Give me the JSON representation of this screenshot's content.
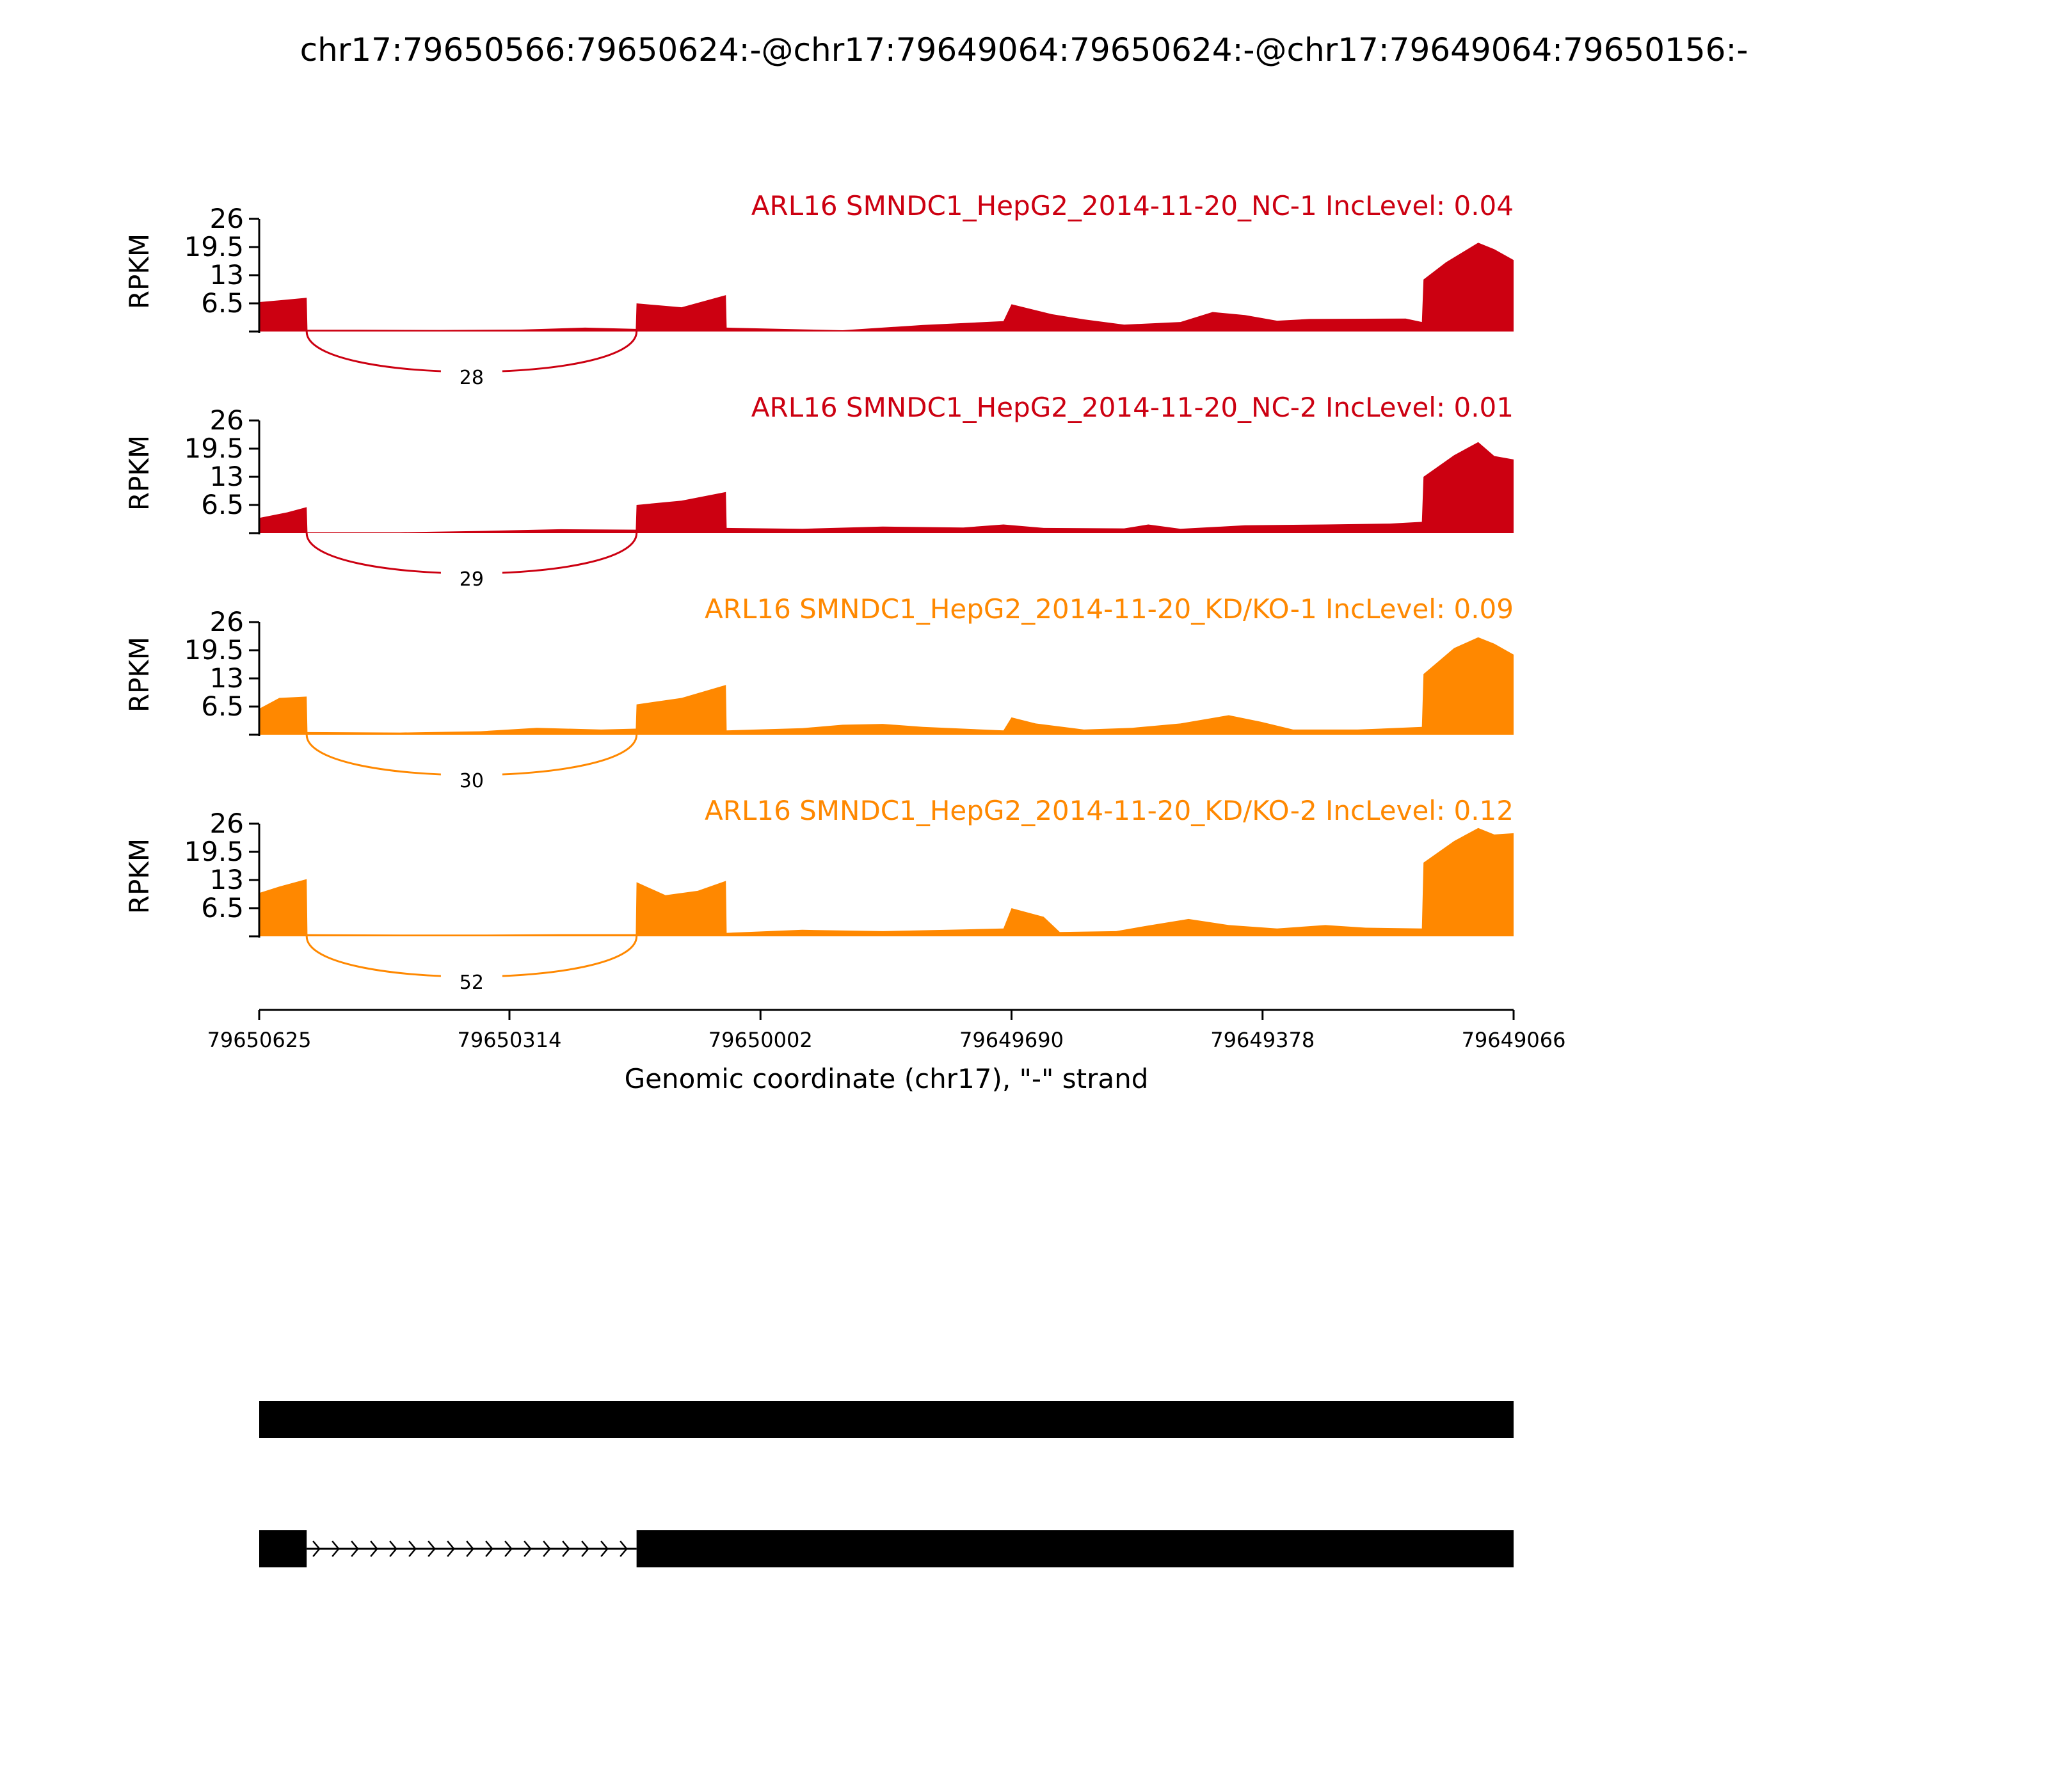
{
  "page_title": "chr17:79650566:79650624:-@chr17:79649064:79650624:-@chr17:79649064:79650156:-",
  "chart_data": {
    "type": "area",
    "title": "chr17:79650566:79650624:-@chr17:79649064:79650624:-@chr17:79649064:79650156:-",
    "ylabel": "RPKM",
    "xlabel": "Genomic coordinate (chr17), \"-\" strand",
    "xlim": [
      79650625,
      79649066
    ],
    "ylim": [
      0,
      26
    ],
    "yticks": [
      "6.5",
      "13",
      "19.5",
      "26"
    ],
    "xticks": [
      "79650625",
      "79650314",
      "79650002",
      "79649690",
      "79649378",
      "79649066"
    ],
    "tracks": [
      {
        "label": "ARL16 SMNDC1_HepG2_2014-11-20_NC-1 IncLevel: 0.04",
        "color": "#cc0011",
        "junction": {
          "from": 79650566,
          "to": 79650156,
          "count": "28"
        },
        "coverage": [
          [
            79650625,
            6.8
          ],
          [
            79650600,
            7.2
          ],
          [
            79650566,
            7.8
          ],
          [
            79650565,
            0.4
          ],
          [
            79650500,
            0.4
          ],
          [
            79650400,
            0.35
          ],
          [
            79650300,
            0.45
          ],
          [
            79650220,
            0.9
          ],
          [
            79650157,
            0.6
          ],
          [
            79650156,
            6.5
          ],
          [
            79650100,
            5.6
          ],
          [
            79650045,
            8.4
          ],
          [
            79650044,
            0.9
          ],
          [
            79649950,
            0.5
          ],
          [
            79649900,
            0.3
          ],
          [
            79649800,
            1.5
          ],
          [
            79649700,
            2.4
          ],
          [
            79649690,
            6.3
          ],
          [
            79649640,
            4.0
          ],
          [
            79649600,
            2.8
          ],
          [
            79649550,
            1.6
          ],
          [
            79649480,
            2.2
          ],
          [
            79649440,
            4.5
          ],
          [
            79649400,
            3.8
          ],
          [
            79649360,
            2.5
          ],
          [
            79649320,
            2.9
          ],
          [
            79649200,
            3.0
          ],
          [
            79649180,
            2.2
          ],
          [
            79649178,
            12.0
          ],
          [
            79649150,
            16.0
          ],
          [
            79649110,
            20.5
          ],
          [
            79649090,
            19.0
          ],
          [
            79649066,
            16.5
          ]
        ]
      },
      {
        "label": "ARL16 SMNDC1_HepG2_2014-11-20_NC-2 IncLevel: 0.01",
        "color": "#cc0011",
        "junction": {
          "from": 79650566,
          "to": 79650156,
          "count": "29"
        },
        "coverage": [
          [
            79650625,
            3.5
          ],
          [
            79650590,
            4.8
          ],
          [
            79650566,
            6.0
          ],
          [
            79650565,
            0.2
          ],
          [
            79650450,
            0.2
          ],
          [
            79650350,
            0.5
          ],
          [
            79650250,
            0.9
          ],
          [
            79650157,
            0.8
          ],
          [
            79650156,
            6.5
          ],
          [
            79650100,
            7.5
          ],
          [
            79650045,
            9.5
          ],
          [
            79650044,
            1.2
          ],
          [
            79649950,
            1.0
          ],
          [
            79649850,
            1.5
          ],
          [
            79649750,
            1.3
          ],
          [
            79649700,
            2.0
          ],
          [
            79649650,
            1.2
          ],
          [
            79649550,
            1.1
          ],
          [
            79649520,
            2.0
          ],
          [
            79649480,
            1.0
          ],
          [
            79649400,
            1.8
          ],
          [
            79649300,
            2.0
          ],
          [
            79649220,
            2.2
          ],
          [
            79649180,
            2.6
          ],
          [
            79649178,
            13.0
          ],
          [
            79649140,
            18.0
          ],
          [
            79649110,
            21.0
          ],
          [
            79649090,
            17.8
          ],
          [
            79649066,
            17.0
          ]
        ]
      },
      {
        "label": "ARL16 SMNDC1_HepG2_2014-11-20_KD/KO-1 IncLevel: 0.09",
        "color": "#ff8800",
        "junction": {
          "from": 79650566,
          "to": 79650156,
          "count": "30"
        },
        "coverage": [
          [
            79650625,
            6.0
          ],
          [
            79650600,
            8.5
          ],
          [
            79650566,
            8.8
          ],
          [
            79650565,
            0.6
          ],
          [
            79650450,
            0.5
          ],
          [
            79650350,
            0.8
          ],
          [
            79650280,
            1.6
          ],
          [
            79650200,
            1.2
          ],
          [
            79650157,
            1.4
          ],
          [
            79650156,
            7.0
          ],
          [
            79650100,
            8.5
          ],
          [
            79650045,
            11.5
          ],
          [
            79650044,
            1.0
          ],
          [
            79649950,
            1.5
          ],
          [
            79649900,
            2.3
          ],
          [
            79649850,
            2.5
          ],
          [
            79649800,
            1.8
          ],
          [
            79649700,
            1.0
          ],
          [
            79649690,
            4.0
          ],
          [
            79649660,
            2.6
          ],
          [
            79649600,
            1.2
          ],
          [
            79649540,
            1.6
          ],
          [
            79649480,
            2.6
          ],
          [
            79649420,
            4.5
          ],
          [
            79649380,
            3.0
          ],
          [
            79649340,
            1.2
          ],
          [
            79649260,
            1.2
          ],
          [
            79649180,
            1.8
          ],
          [
            79649178,
            14.0
          ],
          [
            79649140,
            20.0
          ],
          [
            79649110,
            22.5
          ],
          [
            79649090,
            21.0
          ],
          [
            79649066,
            18.5
          ]
        ]
      },
      {
        "label": "ARL16 SMNDC1_HepG2_2014-11-20_KD/KO-2 IncLevel: 0.12",
        "color": "#ff8800",
        "junction": {
          "from": 79650566,
          "to": 79650156,
          "count": "52"
        },
        "coverage": [
          [
            79650625,
            10.0
          ],
          [
            79650600,
            11.5
          ],
          [
            79650566,
            13.2
          ],
          [
            79650565,
            0.5
          ],
          [
            79650450,
            0.4
          ],
          [
            79650350,
            0.4
          ],
          [
            79650250,
            0.5
          ],
          [
            79650157,
            0.5
          ],
          [
            79650156,
            12.5
          ],
          [
            79650120,
            9.5
          ],
          [
            79650080,
            10.5
          ],
          [
            79650045,
            12.8
          ],
          [
            79650044,
            0.8
          ],
          [
            79649950,
            1.5
          ],
          [
            79649850,
            1.2
          ],
          [
            79649750,
            1.6
          ],
          [
            79649700,
            1.8
          ],
          [
            79649690,
            6.5
          ],
          [
            79649650,
            4.5
          ],
          [
            79649630,
            1.0
          ],
          [
            79649560,
            1.2
          ],
          [
            79649520,
            2.5
          ],
          [
            79649470,
            4.0
          ],
          [
            79649420,
            2.6
          ],
          [
            79649360,
            1.8
          ],
          [
            79649300,
            2.6
          ],
          [
            79649250,
            2.0
          ],
          [
            79649180,
            1.8
          ],
          [
            79649178,
            17.0
          ],
          [
            79649140,
            22.0
          ],
          [
            79649110,
            25.0
          ],
          [
            79649090,
            23.5
          ],
          [
            79649066,
            23.8
          ]
        ]
      }
    ],
    "isoforms": [
      {
        "exons": [
          [
            79650625,
            79649066
          ]
        ]
      },
      {
        "exons": [
          [
            79650625,
            79650566
          ],
          [
            79650156,
            79649066
          ]
        ],
        "intron": [
          79650566,
          79650156
        ],
        "strand": "-"
      }
    ]
  }
}
